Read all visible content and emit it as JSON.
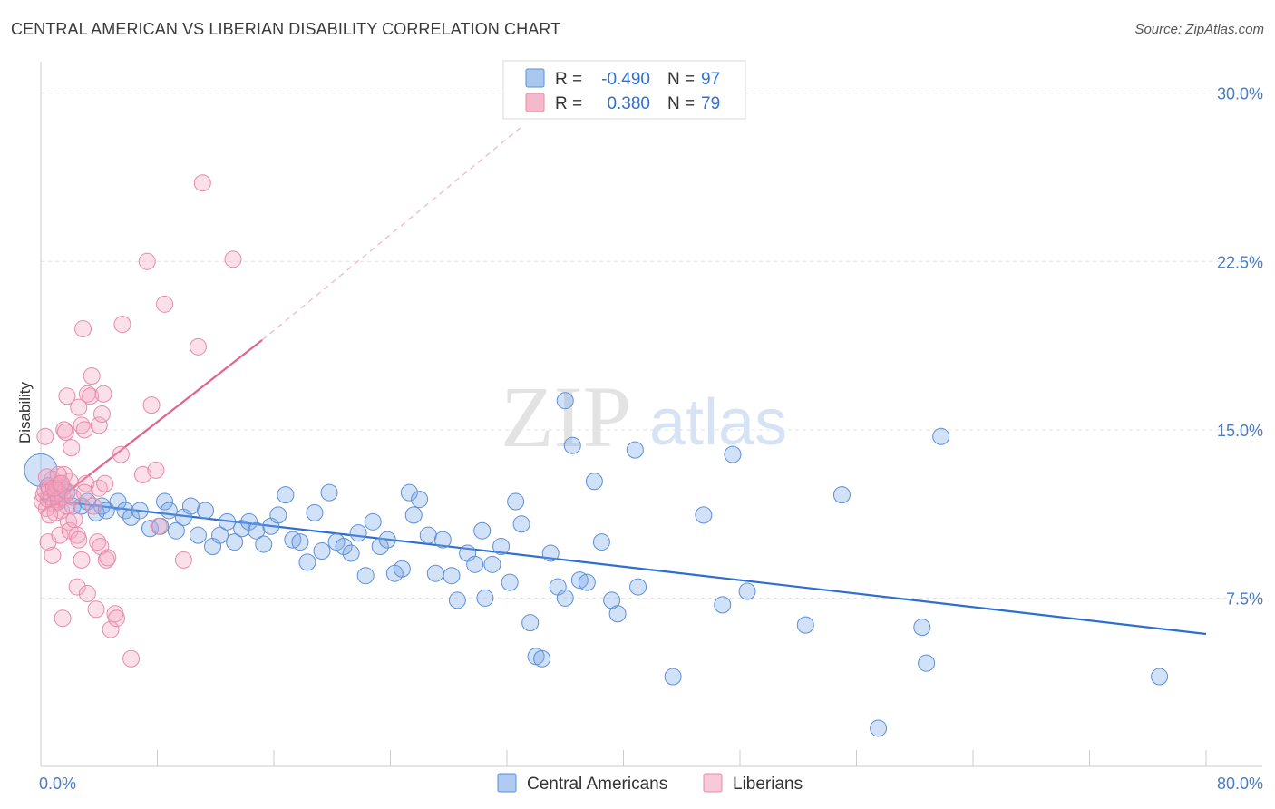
{
  "header": {
    "title": "CENTRAL AMERICAN VS LIBERIAN DISABILITY CORRELATION CHART",
    "source": "Source: ZipAtlas.com"
  },
  "watermark": {
    "zip": "ZIP",
    "atlas": "atlas"
  },
  "legend": {
    "rows": [
      {
        "r_label": "R =",
        "r_value": "-0.490",
        "n_label": "N =",
        "n_value": "97",
        "color": "#a9c8f0"
      },
      {
        "r_label": "R =",
        "r_value": "0.380",
        "n_label": "N =",
        "n_value": "79",
        "color": "#f6b9cc"
      }
    ]
  },
  "chart_data": {
    "type": "scatter",
    "title": "CENTRAL AMERICAN VS LIBERIAN DISABILITY CORRELATION CHART",
    "xlabel": "",
    "ylabel": "Disability",
    "xlim": [
      0,
      80
    ],
    "ylim": [
      0,
      31
    ],
    "x_tick_labels": [
      "0.0%",
      "80.0%"
    ],
    "y_ticks": [
      7.5,
      15.0,
      22.5,
      30.0
    ],
    "y_tick_labels": [
      "7.5%",
      "15.0%",
      "22.5%",
      "30.0%"
    ],
    "grid": "horizontal dashed",
    "legend_position": "bottom-center",
    "series": [
      {
        "name": "Central Americans",
        "color": "#7aa8e8",
        "stroke": "#5b8fd8",
        "line_color": "#2b6fd1",
        "trend": {
          "x": [
            0,
            80
          ],
          "y": [
            11.9,
            5.9
          ],
          "dashed_extension": false
        },
        "points": [
          [
            0,
            13.2
          ],
          [
            0.5,
            12.5
          ],
          [
            1,
            12.3
          ],
          [
            1.2,
            11.8
          ],
          [
            1.5,
            12.4
          ],
          [
            1.8,
            12.2
          ],
          [
            2.2,
            11.6
          ],
          [
            2.8,
            11.6
          ],
          [
            3.2,
            11.8
          ],
          [
            3.8,
            11.3
          ],
          [
            4.2,
            11.6
          ],
          [
            4.5,
            11.4
          ],
          [
            5.3,
            11.8
          ],
          [
            5.8,
            11.4
          ],
          [
            6.2,
            11.1
          ],
          [
            6.8,
            11.4
          ],
          [
            7.5,
            10.6
          ],
          [
            8.2,
            10.7
          ],
          [
            8.5,
            11.8
          ],
          [
            8.8,
            11.4
          ],
          [
            9.3,
            10.5
          ],
          [
            9.8,
            11.1
          ],
          [
            10.3,
            11.6
          ],
          [
            10.8,
            10.3
          ],
          [
            11.3,
            11.4
          ],
          [
            11.8,
            9.8
          ],
          [
            12.3,
            10.3
          ],
          [
            12.8,
            10.9
          ],
          [
            13.3,
            10.0
          ],
          [
            13.8,
            10.6
          ],
          [
            14.3,
            10.9
          ],
          [
            14.8,
            10.5
          ],
          [
            15.3,
            9.9
          ],
          [
            15.8,
            10.7
          ],
          [
            16.3,
            11.2
          ],
          [
            16.8,
            12.1
          ],
          [
            17.3,
            10.1
          ],
          [
            17.8,
            10.0
          ],
          [
            18.3,
            9.1
          ],
          [
            18.8,
            11.3
          ],
          [
            19.3,
            9.6
          ],
          [
            19.8,
            12.2
          ],
          [
            20.3,
            10.0
          ],
          [
            20.8,
            9.8
          ],
          [
            21.3,
            9.5
          ],
          [
            21.8,
            10.4
          ],
          [
            22.3,
            8.5
          ],
          [
            22.8,
            10.9
          ],
          [
            23.3,
            9.8
          ],
          [
            23.8,
            10.1
          ],
          [
            24.3,
            8.6
          ],
          [
            24.8,
            8.8
          ],
          [
            25.3,
            12.2
          ],
          [
            25.6,
            11.2
          ],
          [
            26.0,
            11.9
          ],
          [
            26.6,
            10.3
          ],
          [
            27.1,
            8.6
          ],
          [
            27.6,
            10.1
          ],
          [
            28.2,
            8.5
          ],
          [
            28.6,
            7.4
          ],
          [
            29.3,
            9.5
          ],
          [
            29.8,
            9.0
          ],
          [
            30.3,
            10.5
          ],
          [
            30.5,
            7.5
          ],
          [
            31.0,
            9.0
          ],
          [
            31.6,
            9.8
          ],
          [
            32.2,
            8.2
          ],
          [
            32.6,
            11.8
          ],
          [
            33.0,
            10.8
          ],
          [
            33.6,
            6.4
          ],
          [
            34.0,
            4.9
          ],
          [
            34.4,
            4.8
          ],
          [
            35.0,
            9.5
          ],
          [
            35.5,
            8.0
          ],
          [
            36.0,
            7.5
          ],
          [
            36.5,
            14.3
          ],
          [
            37.0,
            8.3
          ],
          [
            37.5,
            8.2
          ],
          [
            38.0,
            12.7
          ],
          [
            38.5,
            10.0
          ],
          [
            39.2,
            7.4
          ],
          [
            39.6,
            6.8
          ],
          [
            41.0,
            8.0
          ],
          [
            40.8,
            14.1
          ],
          [
            43.4,
            4.0
          ],
          [
            45.5,
            11.2
          ],
          [
            46.8,
            7.2
          ],
          [
            47.5,
            13.9
          ],
          [
            48.5,
            7.8
          ],
          [
            52.5,
            6.3
          ],
          [
            55.0,
            12.1
          ],
          [
            57.5,
            1.7
          ],
          [
            60.5,
            6.2
          ],
          [
            60.8,
            4.6
          ],
          [
            61.8,
            14.7
          ],
          [
            76.8,
            4.0
          ],
          [
            36.0,
            16.3
          ]
        ]
      },
      {
        "name": "Liberians",
        "color": "#f4a6c0",
        "stroke": "#e88aa8",
        "line_color": "#e2648f",
        "trend": {
          "x": [
            0,
            15.2
          ],
          "y": [
            11.3,
            19.0
          ],
          "dashed_extension_to": [
            33.0,
            28.5
          ]
        },
        "points": [
          [
            0.1,
            11.8
          ],
          [
            0.2,
            12.1
          ],
          [
            0.3,
            12.3
          ],
          [
            0.4,
            11.5
          ],
          [
            0.5,
            11.9
          ],
          [
            0.6,
            12.4
          ],
          [
            0.7,
            12.0
          ],
          [
            0.8,
            12.8
          ],
          [
            0.9,
            11.7
          ],
          [
            1.0,
            12.2
          ],
          [
            1.1,
            12.5
          ],
          [
            1.2,
            11.9
          ],
          [
            1.3,
            12.6
          ],
          [
            1.4,
            11.4
          ],
          [
            1.5,
            12.0
          ],
          [
            1.6,
            13.0
          ],
          [
            1.7,
            12.3
          ],
          [
            1.8,
            11.6
          ],
          [
            1.9,
            10.9
          ],
          [
            2.0,
            12.7
          ],
          [
            0.3,
            14.7
          ],
          [
            0.5,
            10.0
          ],
          [
            0.8,
            9.4
          ],
          [
            1.0,
            11.3
          ],
          [
            1.3,
            10.3
          ],
          [
            1.5,
            6.6
          ],
          [
            1.6,
            15.0
          ],
          [
            1.7,
            14.9
          ],
          [
            1.8,
            16.5
          ],
          [
            2.0,
            10.5
          ],
          [
            2.2,
            12.0
          ],
          [
            2.3,
            11.0
          ],
          [
            2.5,
            8.0
          ],
          [
            2.5,
            10.3
          ],
          [
            2.6,
            16.0
          ],
          [
            2.6,
            10.1
          ],
          [
            2.8,
            15.2
          ],
          [
            2.8,
            9.2
          ],
          [
            2.9,
            19.5
          ],
          [
            3.0,
            15.0
          ],
          [
            3.1,
            12.6
          ],
          [
            3.2,
            7.7
          ],
          [
            3.2,
            16.6
          ],
          [
            3.4,
            16.5
          ],
          [
            3.5,
            17.4
          ],
          [
            3.6,
            11.6
          ],
          [
            3.8,
            7.0
          ],
          [
            3.9,
            10.0
          ],
          [
            4.0,
            15.2
          ],
          [
            4.0,
            12.4
          ],
          [
            4.1,
            9.8
          ],
          [
            4.2,
            15.7
          ],
          [
            4.3,
            16.6
          ],
          [
            4.4,
            12.6
          ],
          [
            4.5,
            9.2
          ],
          [
            4.6,
            9.3
          ],
          [
            4.8,
            6.1
          ],
          [
            5.1,
            6.8
          ],
          [
            5.2,
            6.6
          ],
          [
            5.5,
            13.9
          ],
          [
            5.6,
            19.7
          ],
          [
            6.2,
            4.8
          ],
          [
            7.0,
            13.0
          ],
          [
            7.3,
            22.5
          ],
          [
            7.6,
            16.1
          ],
          [
            7.9,
            13.2
          ],
          [
            8.1,
            10.7
          ],
          [
            8.5,
            20.6
          ],
          [
            9.8,
            9.2
          ],
          [
            10.8,
            18.7
          ],
          [
            11.1,
            26.0
          ],
          [
            13.2,
            22.6
          ],
          [
            0.4,
            12.9
          ],
          [
            0.6,
            11.2
          ],
          [
            0.9,
            12.4
          ],
          [
            1.2,
            13.0
          ],
          [
            1.4,
            12.6
          ],
          [
            2.1,
            14.2
          ],
          [
            3.0,
            12.2
          ]
        ]
      }
    ]
  }
}
